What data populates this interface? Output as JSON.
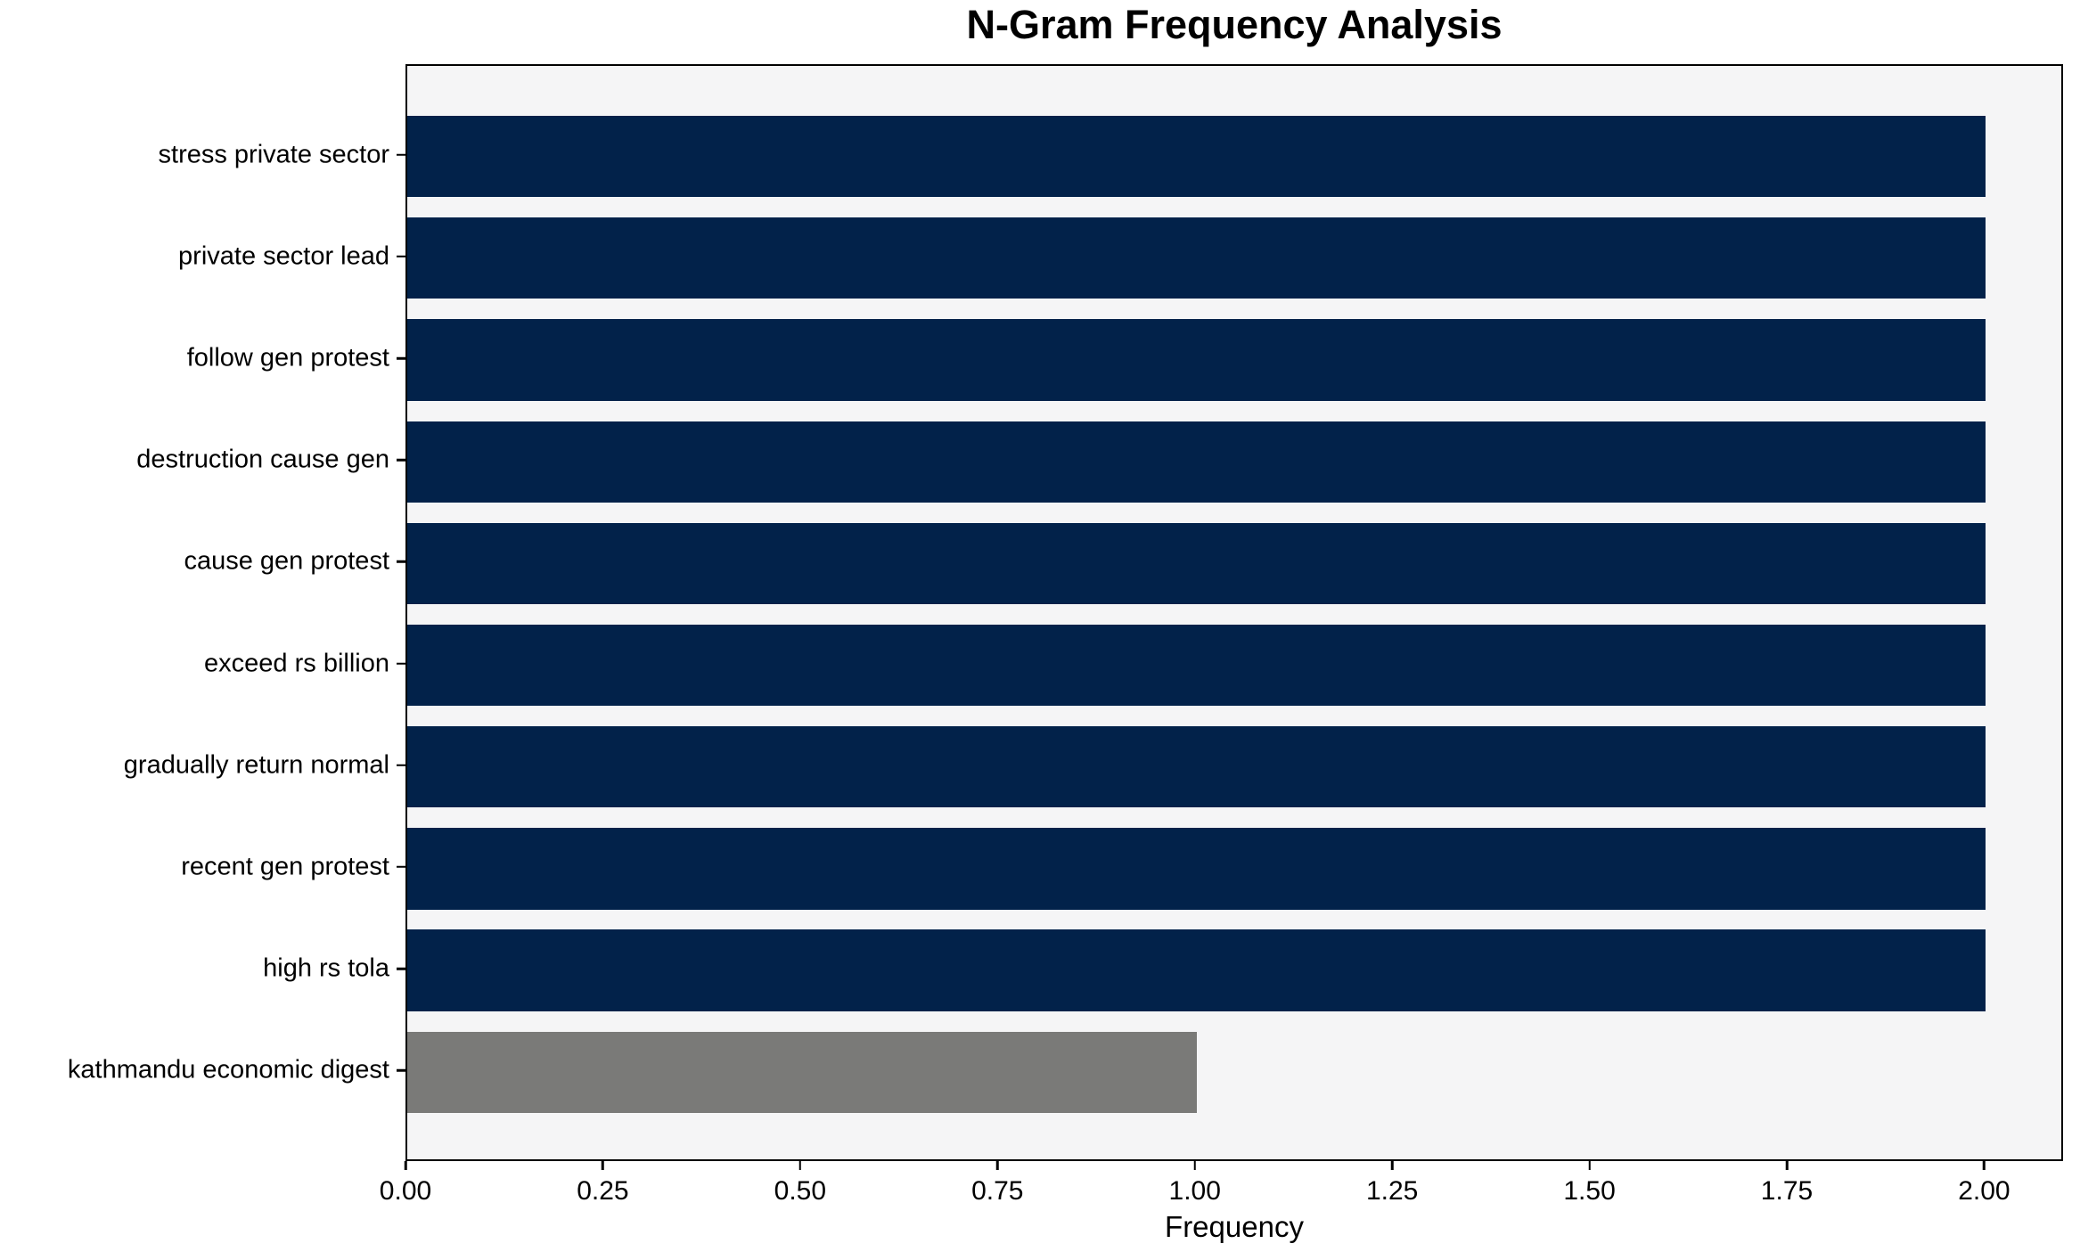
{
  "chart_data": {
    "type": "bar",
    "orientation": "horizontal",
    "title": "N-Gram Frequency Analysis",
    "xlabel": "Frequency",
    "ylabel": "",
    "categories": [
      "stress private sector",
      "private sector lead",
      "follow gen protest",
      "destruction cause gen",
      "cause gen protest",
      "exceed rs billion",
      "gradually return normal",
      "recent gen protest",
      "high rs tola",
      "kathmandu economic digest"
    ],
    "values": [
      2,
      2,
      2,
      2,
      2,
      2,
      2,
      2,
      2,
      1
    ],
    "bar_colors": [
      "#02224a",
      "#02224a",
      "#02224a",
      "#02224a",
      "#02224a",
      "#02224a",
      "#02224a",
      "#02224a",
      "#02224a",
      "#7a7a78"
    ],
    "xlim": [
      0,
      2.1
    ],
    "x_tick_values": [
      0,
      0.25,
      0.5,
      0.75,
      1.0,
      1.25,
      1.5,
      1.75,
      2.0
    ],
    "x_tick_labels": [
      "0.00",
      "0.25",
      "0.50",
      "0.75",
      "1.00",
      "1.25",
      "1.50",
      "1.75",
      "2.00"
    ],
    "grid": false,
    "legend": null,
    "plot_background": "#f5f5f6",
    "spine_color": "#000000"
  }
}
